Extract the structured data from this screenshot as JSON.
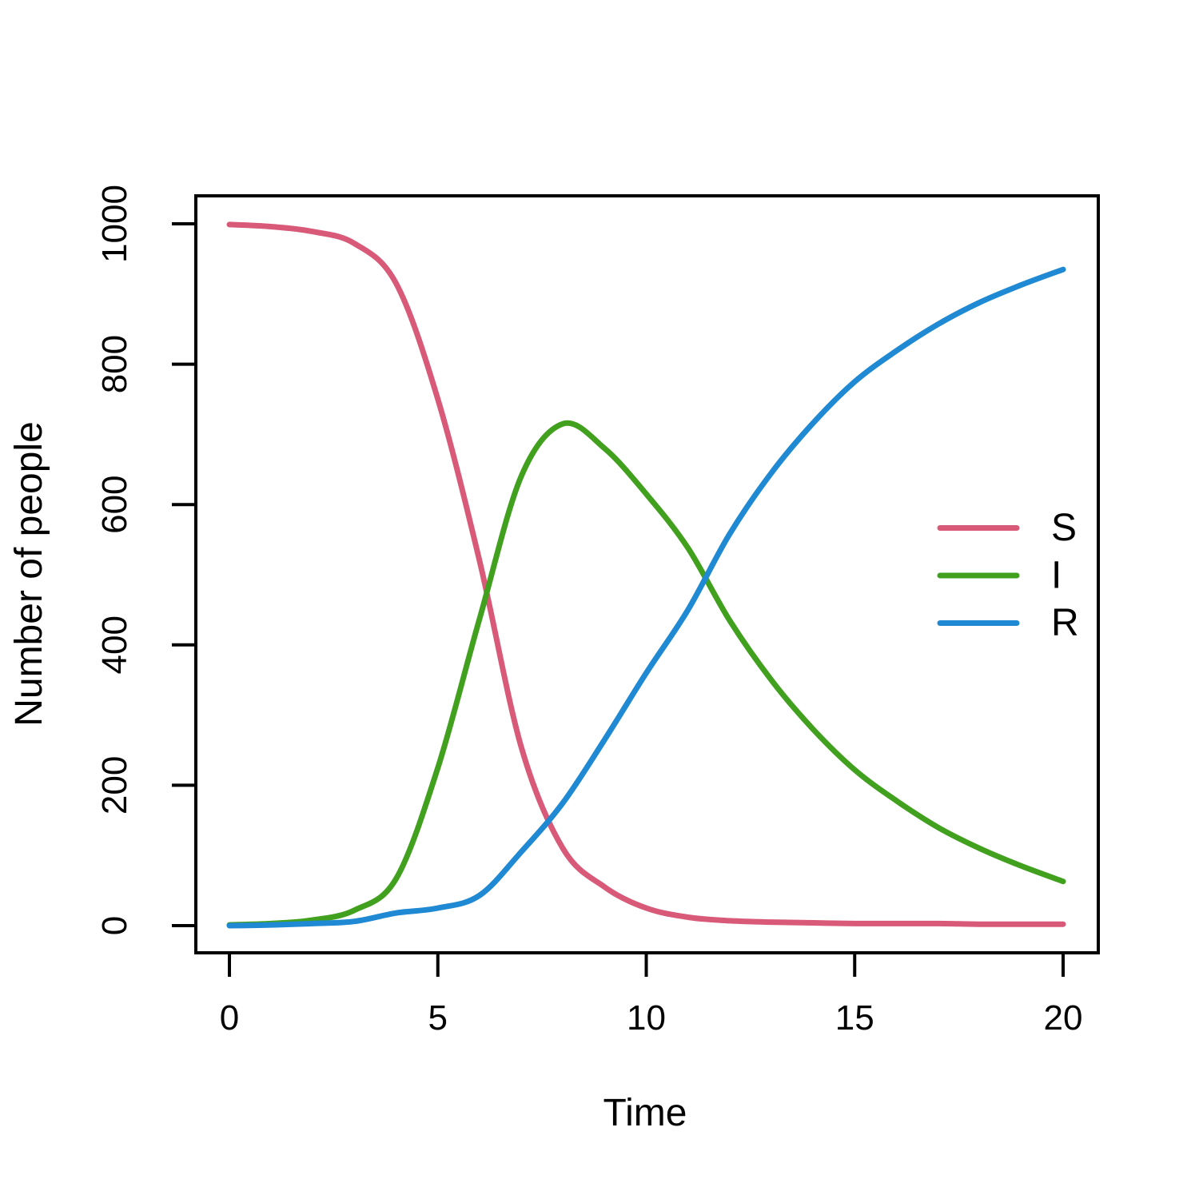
{
  "chart_data": {
    "type": "line",
    "title": "",
    "xlabel": "Time",
    "ylabel": "Number of people",
    "xlim": [
      0,
      20
    ],
    "ylim": [
      0,
      1000
    ],
    "grid": false,
    "x_ticks": [
      0,
      5,
      10,
      15,
      20
    ],
    "y_ticks": [
      0,
      200,
      400,
      600,
      800,
      1000
    ],
    "x": [
      0,
      1,
      2,
      3,
      4,
      5,
      6,
      7,
      8,
      9,
      10,
      11,
      12,
      13,
      14,
      15,
      16,
      17,
      18,
      19,
      20
    ],
    "series": [
      {
        "name": "S",
        "color": "#D85A78",
        "values": [
          999,
          996,
          989,
          972,
          915,
          750,
          520,
          255,
          110,
          55,
          25,
          12,
          7,
          5,
          4,
          3,
          3,
          3,
          2,
          2,
          2
        ]
      },
      {
        "name": "I",
        "color": "#41A01E",
        "values": [
          1,
          3,
          8,
          22,
          67,
          225,
          437,
          640,
          715,
          680,
          615,
          538,
          435,
          350,
          280,
          222,
          178,
          140,
          110,
          85,
          63
        ]
      },
      {
        "name": "R",
        "color": "#2089D3",
        "values": [
          0,
          1,
          3,
          6,
          18,
          25,
          43,
          105,
          175,
          265,
          360,
          450,
          558,
          645,
          716,
          775,
          819,
          857,
          888,
          913,
          935
        ]
      }
    ],
    "legend": {
      "position": "right-middle",
      "entries": [
        "S",
        "I",
        "R"
      ]
    },
    "annotations": {
      "peak_I": {
        "t": 8,
        "value": 715
      },
      "population_total": 1000
    }
  },
  "axes_style": {
    "box_color": "#000000",
    "tick_color": "#000000",
    "background": "#ffffff"
  }
}
